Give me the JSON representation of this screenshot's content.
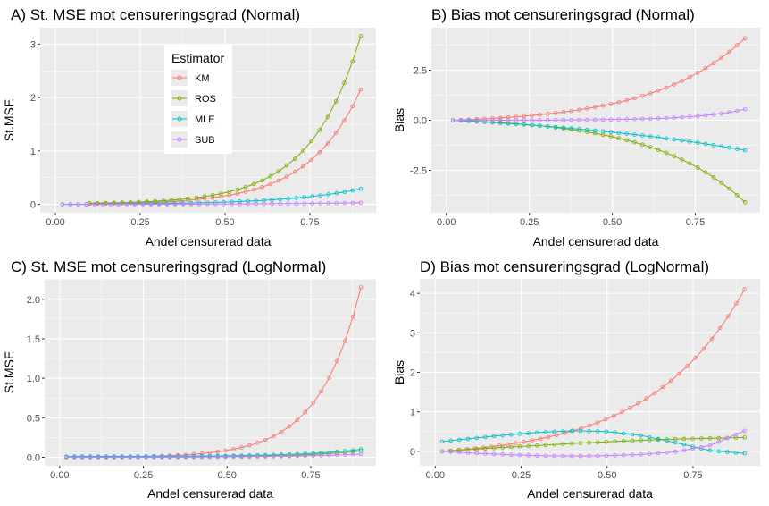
{
  "colors": {
    "KM": "#F8766D",
    "ROS": "#7CAE00",
    "MLE": "#00BFC4",
    "SUB": "#C77CFF",
    "panel_bg": "#EBEBEB",
    "grid": "#FFFFFF"
  },
  "chart_data": [
    {
      "type": "line",
      "title": "A) St. MSE mot censureringsgrad (Normal)",
      "xlabel": "Andel censurerad data",
      "ylabel": "St.MSE",
      "xlim": [
        0,
        0.9
      ],
      "ylim": [
        0,
        3.15
      ],
      "xticks": [
        0.0,
        0.25,
        0.5,
        0.75
      ],
      "xtick_labels": [
        "0.00",
        "0.25",
        "0.50",
        "0.75"
      ],
      "yticks": [
        0,
        1,
        2,
        3
      ],
      "ytick_labels": [
        "0",
        "1",
        "2",
        "3"
      ],
      "grid": true,
      "legend": {
        "title": "Estimator",
        "placement": "inside top-center",
        "entries": [
          "KM",
          "ROS",
          "MLE",
          "SUB"
        ]
      },
      "series": [
        {
          "name": "KM",
          "x_start": 0.1,
          "x_end": 0.9,
          "value_at_start": 0.01,
          "value_at_end": 2.15,
          "curvature": 5.2
        },
        {
          "name": "ROS",
          "x_start": 0.1,
          "x_end": 0.9,
          "value_at_start": 0.02,
          "value_at_end": 3.15,
          "curvature": 5.4
        },
        {
          "name": "MLE",
          "x_start": 0.02,
          "x_end": 0.9,
          "value_at_start": 0.0,
          "value_at_end": 0.29,
          "curvature": 4.0
        },
        {
          "name": "SUB",
          "x_start": 0.02,
          "x_end": 0.9,
          "value_at_start": 0.0,
          "value_at_end": 0.03,
          "curvature": 3.0
        }
      ]
    },
    {
      "type": "line",
      "title": "B) Bias mot censureringsgrad (Normal)",
      "xlabel": "Andel censurerad data",
      "ylabel": "Bias",
      "xlim": [
        0,
        0.9
      ],
      "ylim": [
        -4.2,
        4.2
      ],
      "xticks": [
        0.0,
        0.25,
        0.5,
        0.75
      ],
      "xtick_labels": [
        "0.00",
        "0.25",
        "0.50",
        "0.75"
      ],
      "yticks": [
        -2.5,
        0,
        2.5
      ],
      "ytick_labels": [
        "-2.5",
        "0.0",
        "2.5"
      ],
      "grid": true,
      "series": [
        {
          "name": "KM",
          "x_start": 0.02,
          "x_end": 0.9,
          "value_at_start": 0.0,
          "value_at_end": 4.1,
          "curvature": 3.2
        },
        {
          "name": "ROS",
          "x_start": 0.02,
          "x_end": 0.9,
          "value_at_start": 0.0,
          "value_at_end": -4.1,
          "curvature": 3.2
        },
        {
          "name": "MLE",
          "x_start": 0.02,
          "x_end": 0.9,
          "value_at_start": 0.0,
          "value_at_end": -1.5,
          "curvature": 1.2
        },
        {
          "name": "SUB",
          "x_start": 0.02,
          "x_end": 0.9,
          "value_at_start": 0.0,
          "value_at_end": 0.55,
          "curvature": 6.0
        }
      ]
    },
    {
      "type": "line",
      "title": "C) St. MSE mot censureringsgrad (LogNormal)",
      "xlabel": "Andel censurerad data",
      "ylabel": "St.MSE",
      "xlim": [
        0,
        0.9
      ],
      "ylim": [
        0,
        2.15
      ],
      "xticks": [
        0.0,
        0.25,
        0.5,
        0.75
      ],
      "xtick_labels": [
        "0.00",
        "0.25",
        "0.50",
        "0.75"
      ],
      "yticks": [
        0.0,
        0.5,
        1.0,
        1.5,
        2.0
      ],
      "ytick_labels": [
        "0.0",
        "0.5",
        "1.0",
        "1.5",
        "2.0"
      ],
      "grid": true,
      "series": [
        {
          "name": "KM",
          "x_start": 0.02,
          "x_end": 0.9,
          "value_at_start": 0.0,
          "value_at_end": 2.15,
          "curvature": 7.0
        },
        {
          "name": "ROS",
          "x_start": 0.02,
          "x_end": 0.9,
          "value_at_start": 0.0,
          "value_at_end": 0.08,
          "curvature": 5.0
        },
        {
          "name": "MLE",
          "x_start": 0.02,
          "x_end": 0.9,
          "value_at_start": 0.01,
          "value_at_end": 0.1,
          "curvature": 5.0
        },
        {
          "name": "SUB",
          "x_start": 0.02,
          "x_end": 0.9,
          "value_at_start": 0.0,
          "value_at_end": 0.04,
          "curvature": 4.0
        }
      ]
    },
    {
      "type": "line",
      "title": "D) Bias mot censureringsgrad (LogNormal)",
      "xlabel": "Andel censurerad data",
      "ylabel": "Bias",
      "xlim": [
        0,
        0.9
      ],
      "ylim": [
        -0.15,
        4.15
      ],
      "xticks": [
        0.0,
        0.25,
        0.5,
        0.75
      ],
      "xtick_labels": [
        "0.00",
        "0.25",
        "0.50",
        "0.75"
      ],
      "yticks": [
        0,
        1,
        2,
        3,
        4
      ],
      "ytick_labels": [
        "0",
        "1",
        "2",
        "3",
        "4"
      ],
      "grid": true,
      "series": [
        {
          "name": "KM",
          "x_start": 0.02,
          "x_end": 0.9,
          "value_at_start": 0.0,
          "value_at_end": 4.1,
          "curvature": 3.2
        },
        {
          "name": "ROS",
          "x": [
            0.02,
            0.1,
            0.2,
            0.3,
            0.4,
            0.5,
            0.6,
            0.7,
            0.8,
            0.9
          ],
          "values": [
            0.0,
            0.05,
            0.1,
            0.15,
            0.2,
            0.24,
            0.28,
            0.31,
            0.33,
            0.35
          ]
        },
        {
          "name": "MLE",
          "x": [
            0.02,
            0.1,
            0.2,
            0.3,
            0.4,
            0.5,
            0.6,
            0.7,
            0.8,
            0.9
          ],
          "values": [
            0.25,
            0.32,
            0.41,
            0.48,
            0.52,
            0.5,
            0.4,
            0.22,
            0.02,
            -0.05
          ]
        },
        {
          "name": "SUB",
          "x": [
            0.02,
            0.1,
            0.2,
            0.3,
            0.4,
            0.5,
            0.6,
            0.7,
            0.8,
            0.9
          ],
          "values": [
            0.0,
            -0.04,
            -0.08,
            -0.11,
            -0.12,
            -0.11,
            -0.08,
            -0.01,
            0.15,
            0.52
          ]
        }
      ]
    }
  ]
}
